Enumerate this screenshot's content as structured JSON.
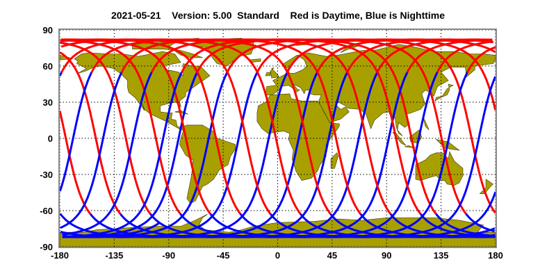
{
  "title": {
    "date": "2021-05-21",
    "version": "Version: 5.00",
    "mode": "Standard",
    "legend": "Red is Daytime, Blue is Nighttime"
  },
  "map": {
    "type": "ground-track map",
    "projection": "equirectangular",
    "x_range": [
      -180,
      180
    ],
    "y_range": [
      -90,
      90
    ],
    "x_ticks": [
      "-180",
      "-135",
      "-90",
      "-45",
      "0",
      "45",
      "90",
      "135",
      "180"
    ],
    "y_ticks": [
      "90",
      "60",
      "30",
      "0",
      "-30",
      "-60",
      "-90"
    ],
    "grid": "dotted",
    "colors": {
      "daytime": "#ff0000",
      "nighttime": "#0000ff",
      "land": "#a8a000",
      "frame": "#888888"
    }
  }
}
